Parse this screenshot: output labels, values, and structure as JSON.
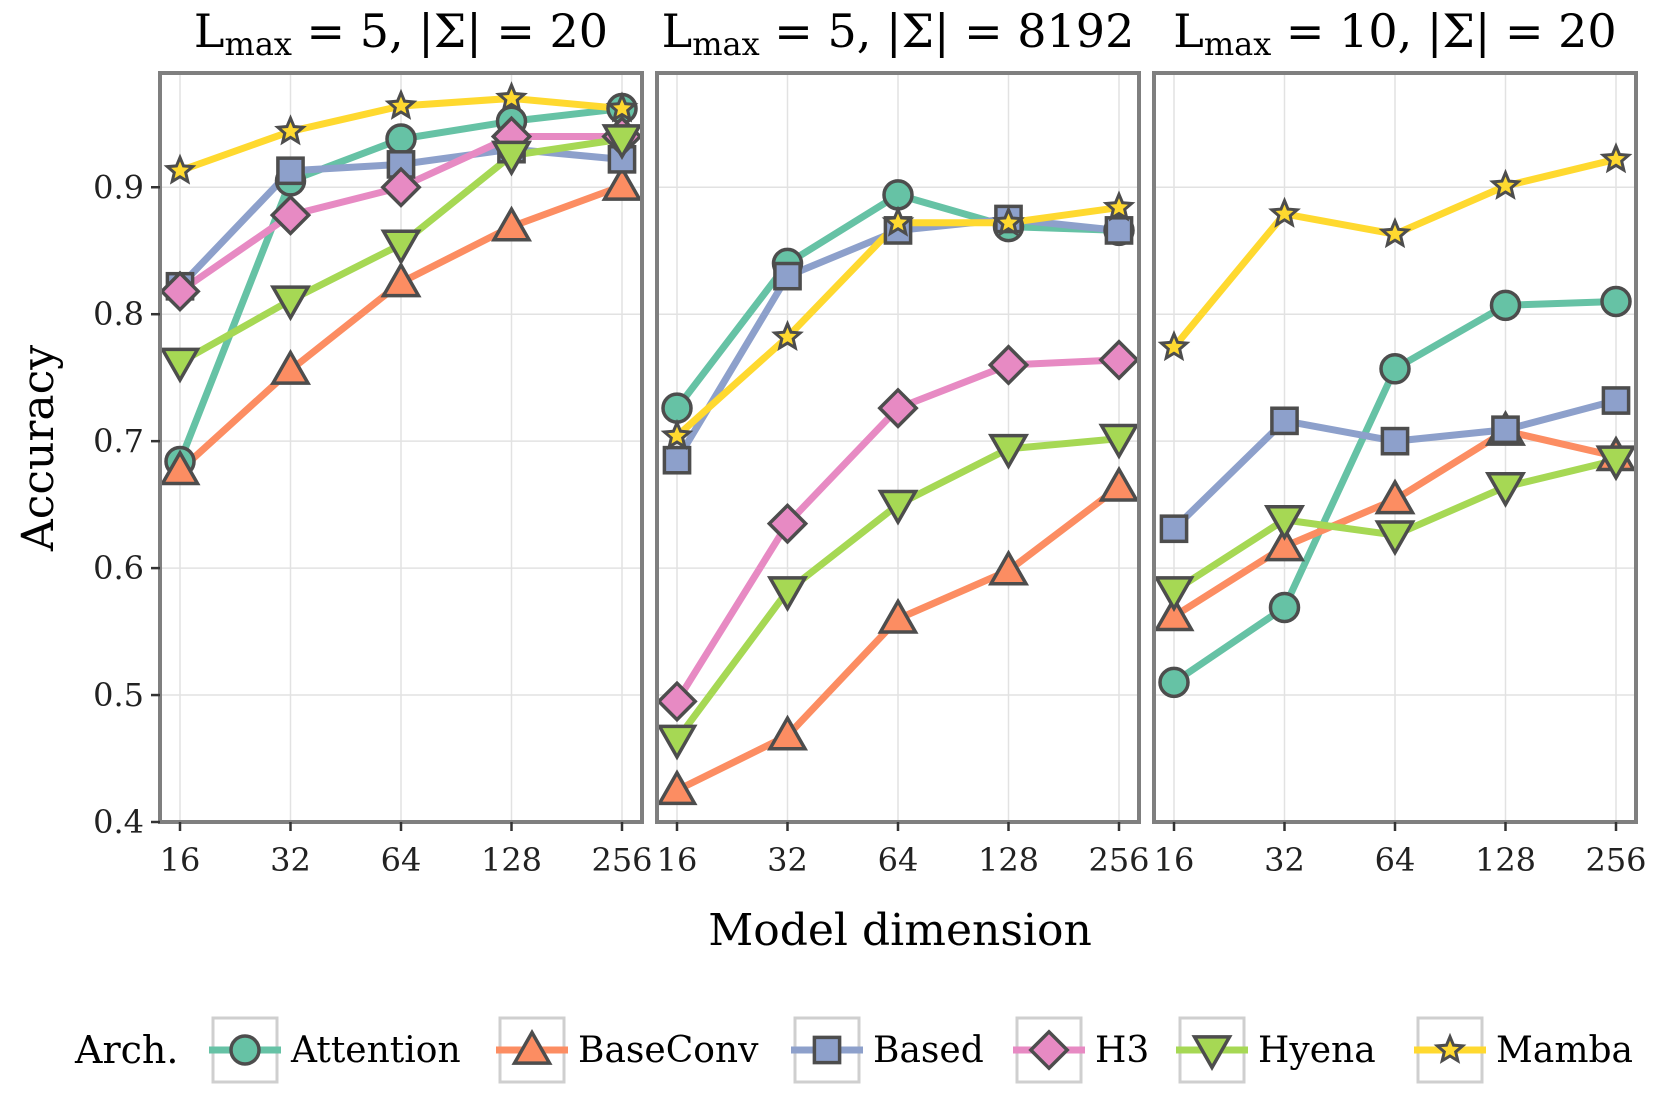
{
  "xlabel": "Model dimension",
  "ylabel": "Accuracy",
  "legend": {
    "title": "Arch.",
    "placement": "bottom"
  },
  "colors": {
    "Attention": "#66c2a5",
    "BaseConv": "#fc8d62",
    "Based": "#8da0cb",
    "H3": "#e78ac3",
    "Hyena": "#a6d854",
    "Mamba": "#ffd92f",
    "outline": "#4d4d4d",
    "frame": "#7f7f7f",
    "grid": "#e2e2e2"
  },
  "markers": {
    "Attention": "circle",
    "BaseConv": "triangle-up",
    "Based": "square",
    "H3": "diamond",
    "Hyena": "triangle-down",
    "Mamba": "star"
  },
  "chart_data": [
    {
      "type": "line",
      "title": {
        "main": "L",
        "sub": "max",
        "rest": " = 5, |Σ| = 20"
      },
      "categories": [
        "16",
        "32",
        "64",
        "128",
        "256"
      ],
      "ylim": [
        0.4,
        0.99
      ],
      "yticks": [
        "0.4",
        "0.5",
        "0.6",
        "0.7",
        "0.8",
        "0.9"
      ],
      "grid": true,
      "series": [
        {
          "name": "Attention",
          "values": [
            0.684,
            0.905,
            0.938,
            0.952,
            0.962
          ]
        },
        {
          "name": "BaseConv",
          "values": [
            0.677,
            0.756,
            0.825,
            0.869,
            0.901
          ]
        },
        {
          "name": "Based",
          "values": [
            0.822,
            0.913,
            0.918,
            0.93,
            0.922
          ]
        },
        {
          "name": "H3",
          "values": [
            0.818,
            0.878,
            0.9,
            0.94,
            0.94
          ]
        },
        {
          "name": "Hyena",
          "values": [
            0.762,
            0.811,
            0.855,
            0.925,
            0.938
          ]
        },
        {
          "name": "Mamba",
          "values": [
            0.913,
            0.944,
            0.964,
            0.97,
            0.962
          ]
        }
      ]
    },
    {
      "type": "line",
      "title": {
        "main": "L",
        "sub": "max",
        "rest": " = 5, |Σ| = 8192"
      },
      "categories": [
        "16",
        "32",
        "64",
        "128",
        "256"
      ],
      "ylim": [
        0.4,
        0.99
      ],
      "grid": true,
      "series": [
        {
          "name": "Attention",
          "values": [
            0.726,
            0.84,
            0.894,
            0.869,
            0.866
          ]
        },
        {
          "name": "BaseConv",
          "values": [
            0.425,
            0.468,
            0.56,
            0.598,
            0.664
          ]
        },
        {
          "name": "Based",
          "values": [
            0.685,
            0.83,
            0.866,
            0.875,
            0.866
          ]
        },
        {
          "name": "H3",
          "values": [
            0.495,
            0.635,
            0.726,
            0.76,
            0.764
          ]
        },
        {
          "name": "Hyena",
          "values": [
            0.465,
            0.582,
            0.65,
            0.694,
            0.702
          ]
        },
        {
          "name": "Mamba",
          "values": [
            0.704,
            0.782,
            0.872,
            0.872,
            0.884
          ]
        }
      ]
    },
    {
      "type": "line",
      "title": {
        "main": "L",
        "sub": "max",
        "rest": " = 10, |Σ| = 20"
      },
      "categories": [
        "16",
        "32",
        "64",
        "128",
        "256"
      ],
      "ylim": [
        0.4,
        0.99
      ],
      "grid": true,
      "series": [
        {
          "name": "Attention",
          "values": [
            0.51,
            0.569,
            0.757,
            0.807,
            0.81
          ]
        },
        {
          "name": "BaseConv",
          "values": [
            0.562,
            0.617,
            0.654,
            0.708,
            0.688
          ]
        },
        {
          "name": "Based",
          "values": [
            0.631,
            0.716,
            0.7,
            0.709,
            0.732
          ]
        },
        {
          "name": "Hyena",
          "values": [
            0.582,
            0.638,
            0.626,
            0.664,
            0.685
          ]
        },
        {
          "name": "Mamba",
          "values": [
            0.774,
            0.879,
            0.863,
            0.901,
            0.922
          ]
        }
      ]
    }
  ]
}
